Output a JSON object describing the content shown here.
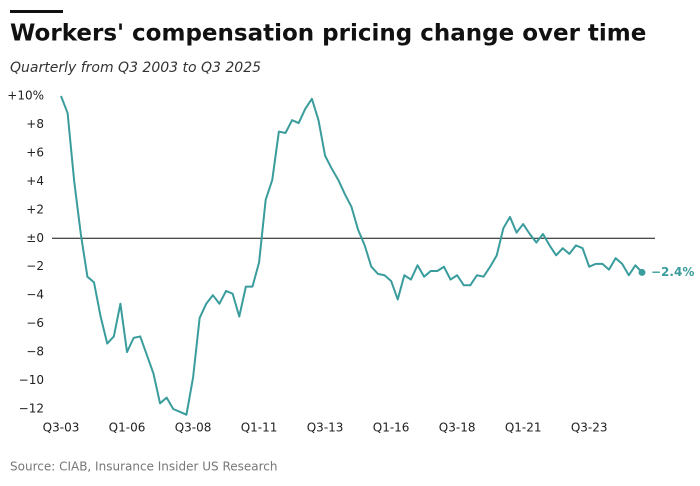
{
  "chart_data": {
    "type": "line",
    "title": "Workers' compensation pricing change over time",
    "subtitle": "Quarterly from Q3 2003 to Q3 2025",
    "source": "Source: CIAB, Insurance Insider US Research",
    "color": "#3a9c9c",
    "categories": [
      "Q3-03",
      null,
      null,
      null,
      null,
      null,
      null,
      null,
      null,
      null,
      "Q1-06",
      null,
      null,
      null,
      null,
      null,
      null,
      null,
      null,
      null,
      "Q3-08",
      null,
      null,
      null,
      null,
      null,
      null,
      null,
      null,
      null,
      "Q1-11",
      null,
      null,
      null,
      null,
      null,
      null,
      null,
      null,
      null,
      "Q3-13",
      null,
      null,
      null,
      null,
      null,
      null,
      null,
      null,
      null,
      "Q1-16",
      null,
      null,
      null,
      null,
      null,
      null,
      null,
      null,
      null,
      "Q3-18",
      null,
      null,
      null,
      null,
      null,
      null,
      null,
      null,
      null,
      "Q1-21",
      null,
      null,
      null,
      null,
      null,
      null,
      null,
      null,
      null,
      "Q3-23",
      null,
      null,
      null,
      null,
      null,
      null,
      null,
      null
    ],
    "values": [
      10,
      8.8,
      4,
      0.3,
      -2.7,
      -3.1,
      -5.5,
      -7.4,
      -6.9,
      -4.6,
      -8,
      -7,
      -6.9,
      -8.2,
      -9.5,
      -11.6,
      -11.2,
      -12,
      -12.2,
      -12.4,
      -9.8,
      -5.6,
      -4.6,
      -4,
      -4.6,
      -3.7,
      -3.9,
      -5.5,
      -3.4,
      -3.4,
      -1.7,
      2.7,
      4.1,
      7.5,
      7.4,
      8.3,
      8.1,
      9.1,
      9.8,
      8.3,
      5.8,
      4.9,
      4.1,
      3.1,
      2.2,
      0.6,
      -0.5,
      -2,
      -2.5,
      -2.6,
      -3,
      -4.3,
      -2.6,
      -2.9,
      -1.9,
      -2.7,
      -2.3,
      -2.3,
      -2,
      -2.9,
      -2.6,
      -3.3,
      -3.3,
      -2.6,
      -2.7,
      -2,
      -1.2,
      0.7,
      1.5,
      0.4,
      1,
      0.3,
      -0.3,
      0.3,
      -0.5,
      -1.2,
      -0.7,
      -1.1,
      -0.5,
      -0.7,
      -2,
      -1.8,
      -1.8,
      -2.2,
      -1.4,
      -1.8,
      -2.6,
      -1.9,
      -2.4
    ],
    "value_labels": [
      null,
      null,
      null,
      null,
      null,
      null,
      null,
      null,
      null,
      null,
      null,
      null,
      null,
      null,
      null,
      null,
      null,
      null,
      null,
      null,
      null,
      null,
      null,
      null,
      null,
      null,
      null,
      null,
      null,
      null,
      null,
      null,
      null,
      null,
      null,
      null,
      null,
      null,
      null,
      null,
      null,
      null,
      null,
      null,
      null,
      null,
      null,
      null,
      null,
      null,
      null,
      null,
      null,
      null,
      null,
      null,
      null,
      null,
      null,
      null,
      null,
      null,
      null,
      null,
      null,
      null,
      null,
      null,
      null,
      null,
      null,
      null,
      null,
      null,
      null,
      null,
      null,
      null,
      null,
      null,
      null,
      null,
      null,
      null,
      null,
      null,
      null,
      null,
      "−2.4%"
    ],
    "ylim": [
      -12,
      10
    ],
    "yticks": [
      {
        "value": 10,
        "label": "+10%"
      },
      {
        "value": 8,
        "label": "+8"
      },
      {
        "value": 6,
        "label": "+6"
      },
      {
        "value": 4,
        "label": "+4"
      },
      {
        "value": 2,
        "label": "+2"
      },
      {
        "value": 0,
        "label": "±0"
      },
      {
        "value": -2,
        "label": "−2"
      },
      {
        "value": -4,
        "label": "−4"
      },
      {
        "value": -6,
        "label": "−6"
      },
      {
        "value": -8,
        "label": "−8"
      },
      {
        "value": -10,
        "label": "−10"
      },
      {
        "value": -12,
        "label": "−12"
      }
    ],
    "grid": false
  }
}
